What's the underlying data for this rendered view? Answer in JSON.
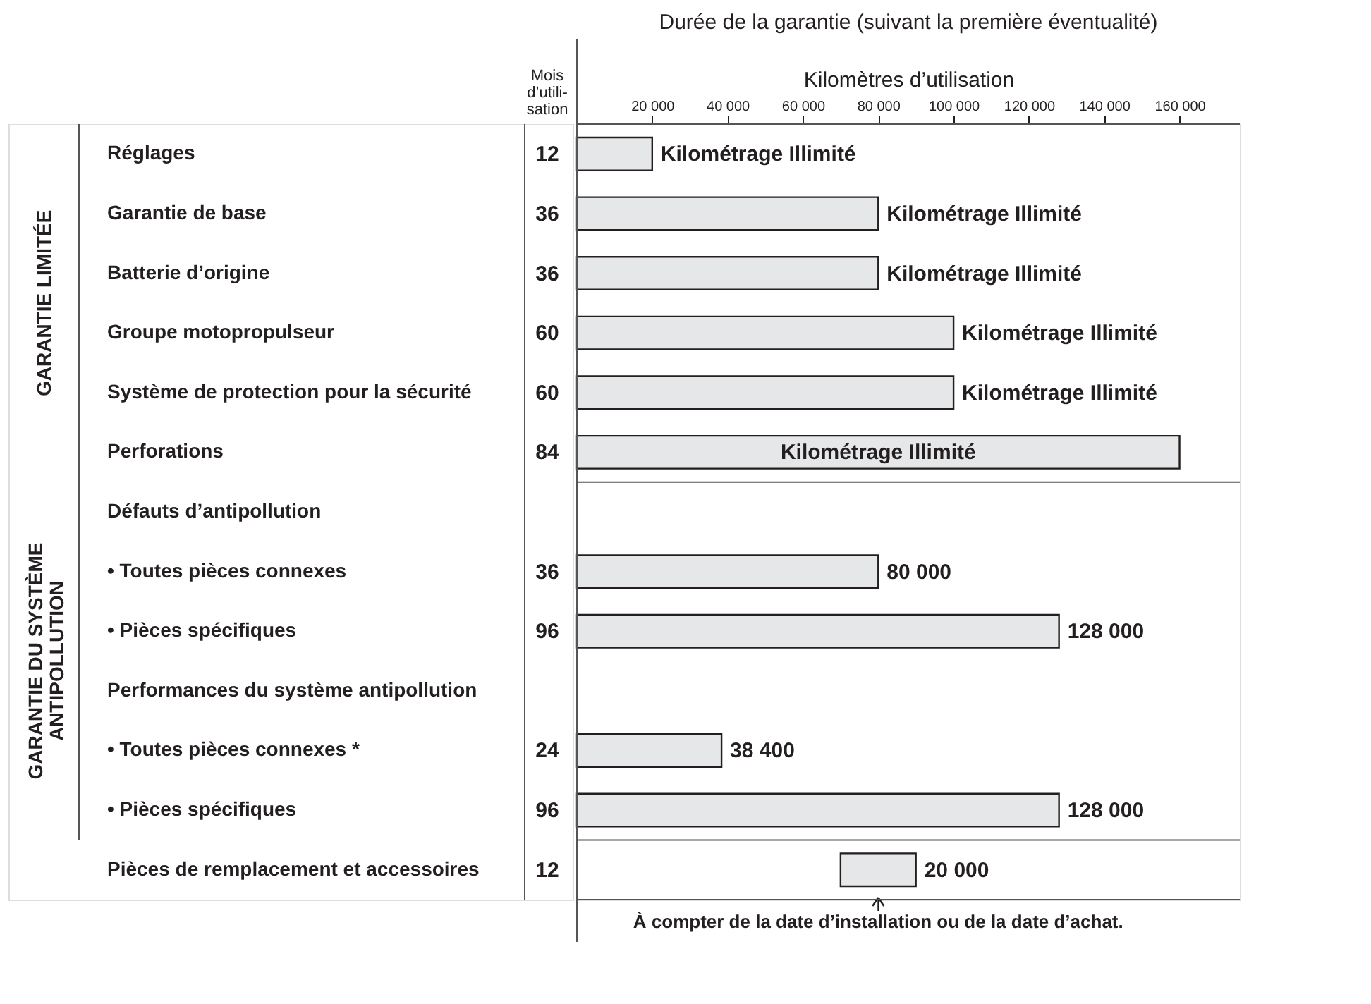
{
  "chart_data": {
    "type": "bar",
    "orientation": "horizontal",
    "title": "Durée de la garantie (suivant la première éventualité)",
    "xlabel": "Kilomètres d’utilisation",
    "categories": [
      "Réglages",
      "Garantie de base",
      "Batterie d’origine",
      "Groupe motopropulseur",
      "Système de protection pour la sécurité",
      "Perforations",
      "Défauts d’antipollution",
      "• Toutes pièces connexes",
      "• Pièces spécifiques",
      "Performances du système antipollution",
      "• Toutes pièces connexes *",
      "• Pièces spécifiques",
      "Pièces de remplacement et accessoires"
    ],
    "values": [
      20000,
      80000,
      80000,
      100000,
      100000,
      160000,
      null,
      80000,
      128000,
      null,
      38400,
      128000,
      20000
    ],
    "base": [
      0,
      0,
      0,
      0,
      0,
      0,
      null,
      0,
      0,
      null,
      0,
      0,
      70000
    ],
    "value_labels": [
      "Kilométrage Illimité",
      "Kilométrage Illimité",
      "Kilométrage Illimité",
      "Kilométrage Illimité",
      "Kilométrage Illimité",
      "Kilométrage Illimité",
      null,
      "80 000",
      "128 000",
      null,
      "38 400",
      "128 000",
      "20 000"
    ],
    "color": "#e6e7e8",
    "xlim": [
      0,
      176000
    ],
    "xticks": [
      {
        "value": 20000,
        "label": "20 000"
      },
      {
        "value": 40000,
        "label": "40 000"
      },
      {
        "value": 60000,
        "label": "60 000"
      },
      {
        "value": 80000,
        "label": "80 000"
      },
      {
        "value": 100000,
        "label": "100 000"
      },
      {
        "value": 120000,
        "label": "120 000"
      },
      {
        "value": 140000,
        "label": "140 000"
      },
      {
        "value": 160000,
        "label": "160 000"
      }
    ],
    "annotations": [
      "GARANTIE LIMITÉE",
      "GARANTIE DU SYSTÈME ANTIPOLLUTION",
      "Mois d’utili- sation",
      "12",
      "36",
      "36",
      "60",
      "60",
      "84",
      "36",
      "96",
      "24",
      "96",
      "12",
      "À compter de la date d’installation ou de la date d’achat."
    ]
  }
}
